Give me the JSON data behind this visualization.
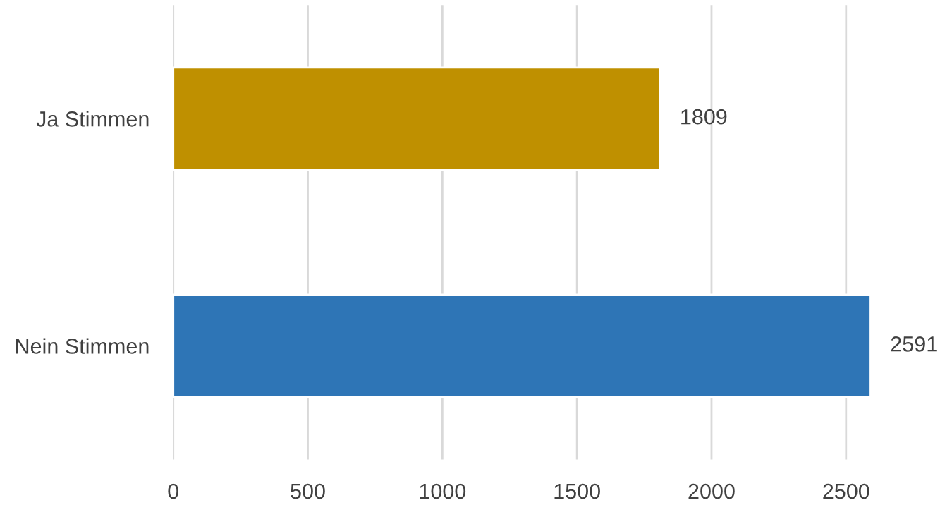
{
  "chart_data": {
    "type": "bar",
    "orientation": "horizontal",
    "categories": [
      "Ja Stimmen",
      "Nein Stimmen"
    ],
    "values": [
      1809,
      2591
    ],
    "colors": [
      "#bf9000",
      "#2e75b6"
    ],
    "xlim": [
      0,
      2600
    ],
    "xticks": [
      0,
      500,
      1000,
      1500,
      2000,
      2500
    ],
    "grid": "x",
    "data_labels": true
  }
}
